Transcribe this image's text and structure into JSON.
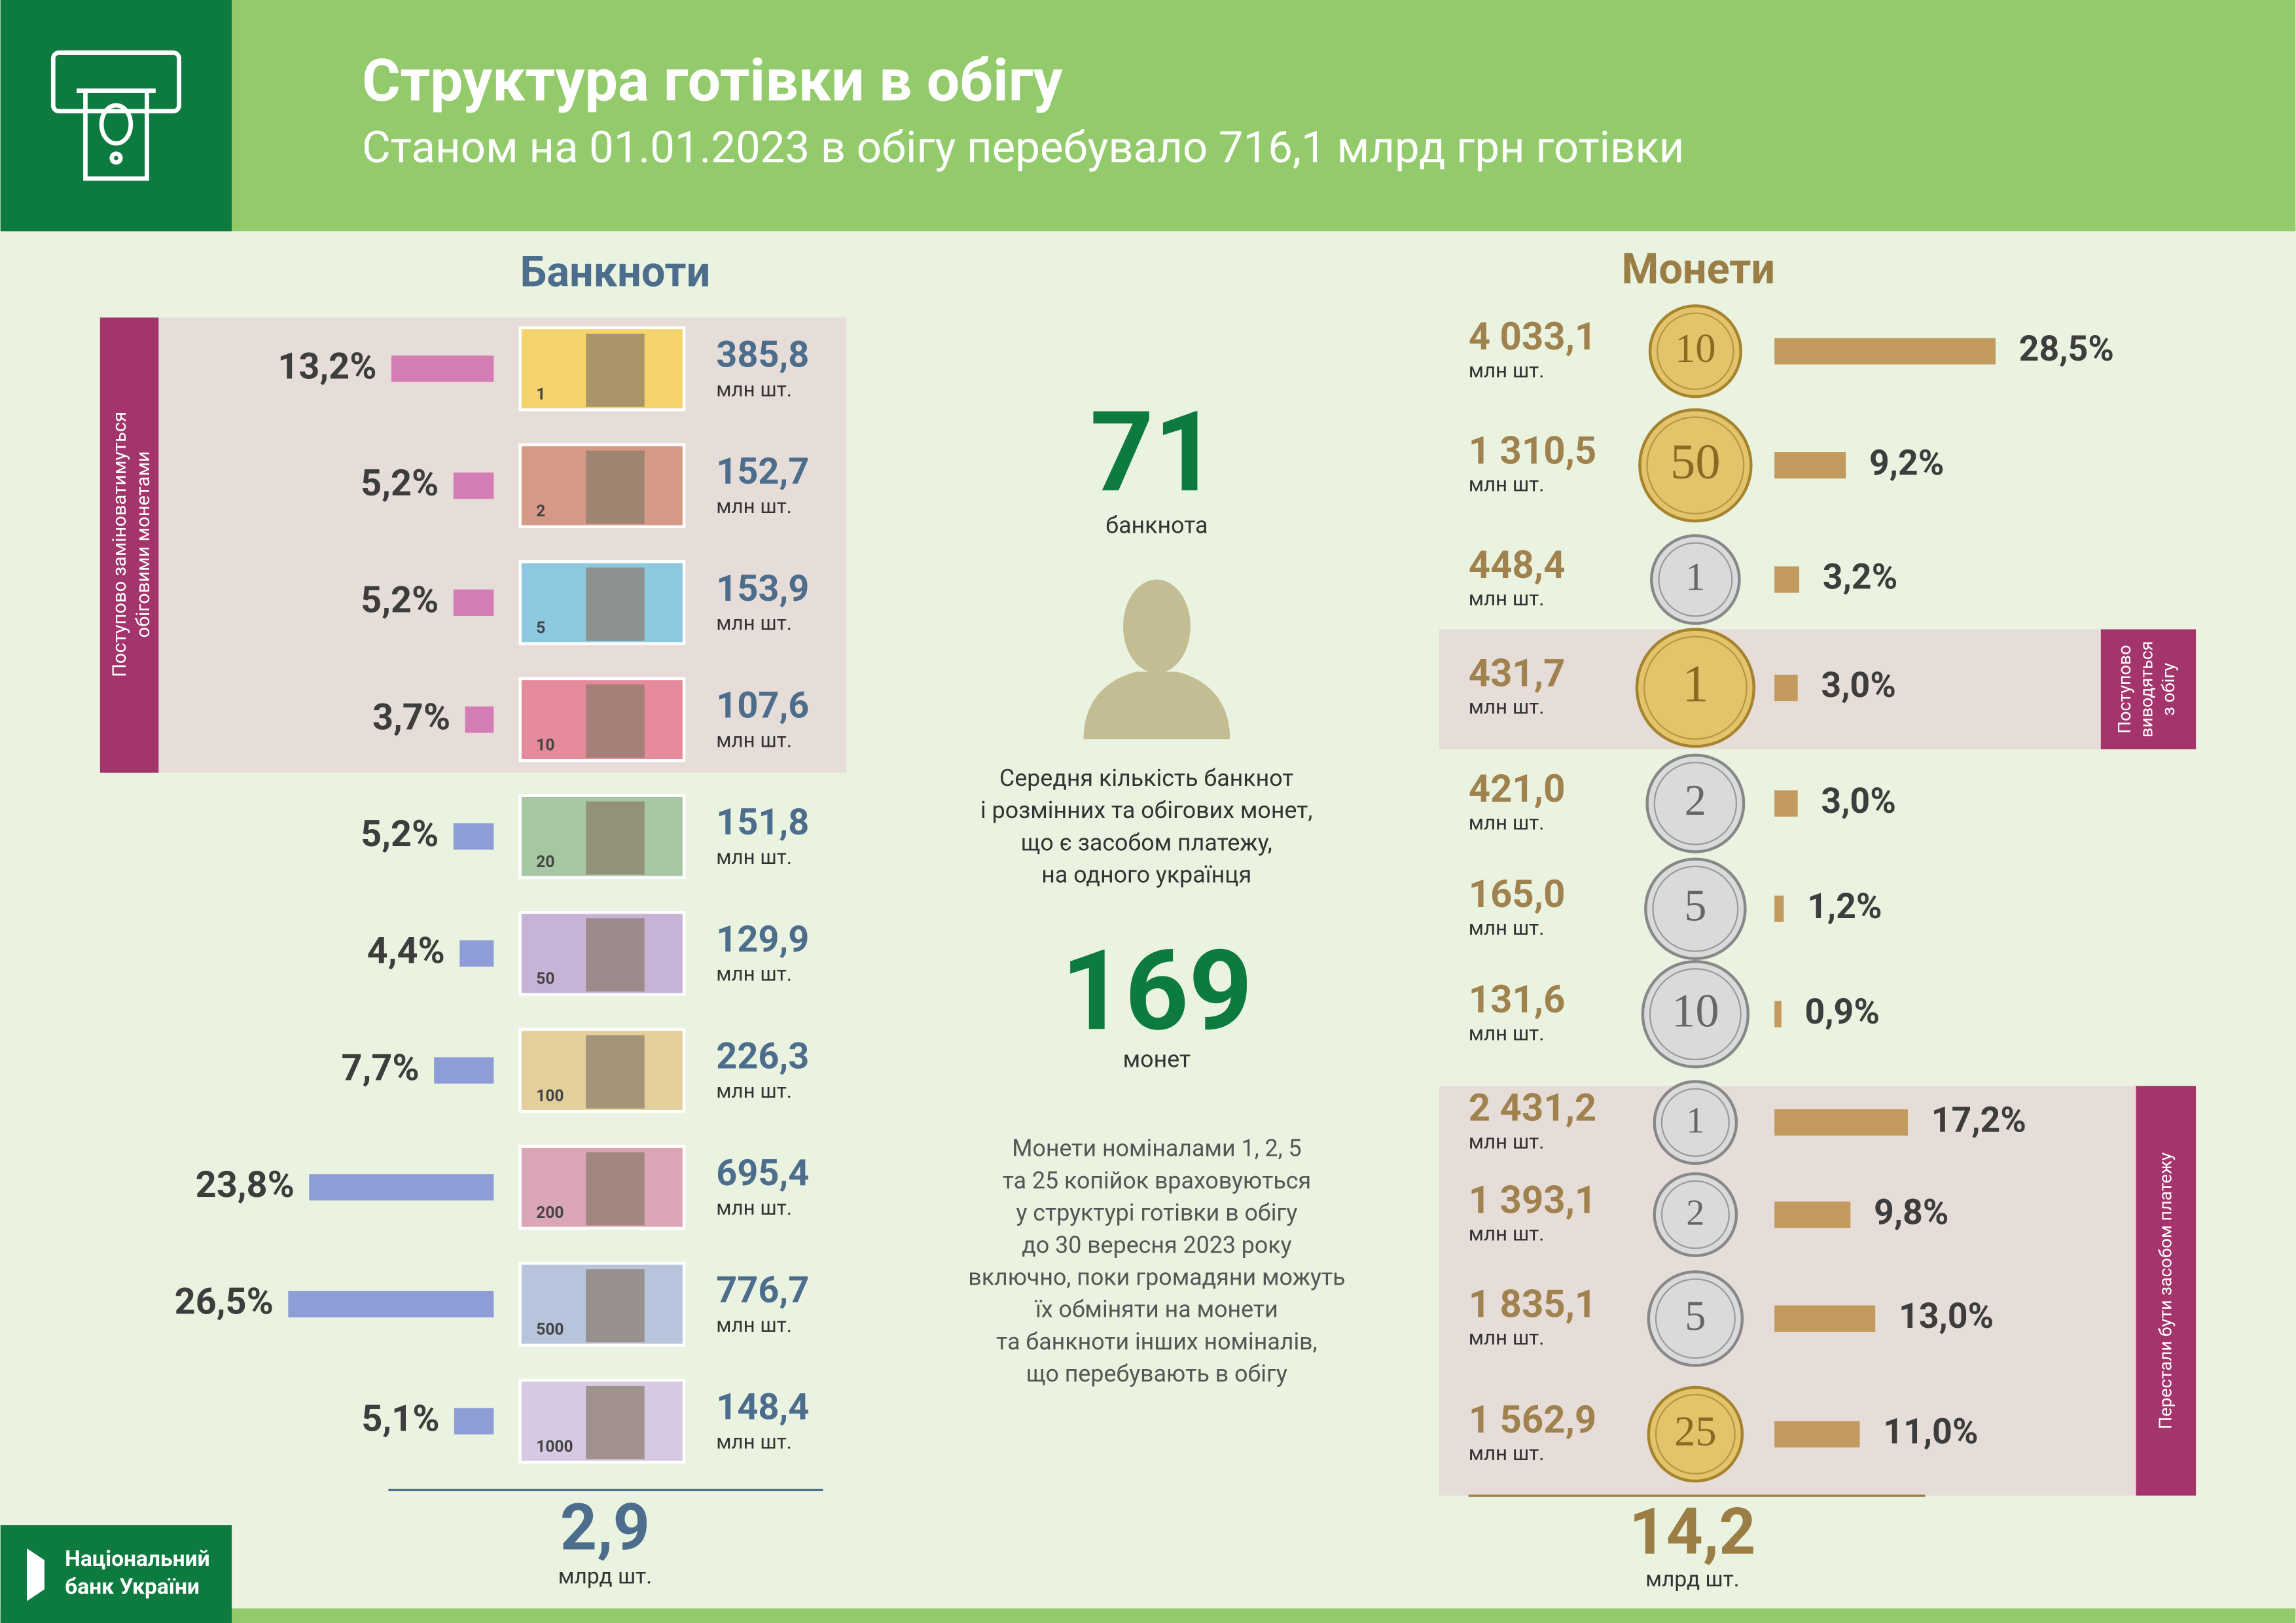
{
  "header": {
    "title": "Структура готівки в обігу",
    "subtitle": "Станом на 01.01.2023 в обігу перебувало 716,1 млрд грн готівки"
  },
  "banknotes": {
    "heading": "Банкноти",
    "bar_colors": [
      "#d47db4",
      "#8e9dd6"
    ],
    "group_note": [
      "Поступово заміноватимуться",
      "обіговими монетами"
    ],
    "items": [
      {
        "denom": "1",
        "percent": 13.2,
        "percent_label": "13,2%",
        "count": "385,8",
        "unit": "млн шт."
      },
      {
        "denom": "2",
        "percent": 5.2,
        "percent_label": "5,2%",
        "count": "152,7",
        "unit": "млн шт."
      },
      {
        "denom": "5",
        "percent": 5.2,
        "percent_label": "5,2%",
        "count": "153,9",
        "unit": "млн шт."
      },
      {
        "denom": "10",
        "percent": 3.7,
        "percent_label": "3,7%",
        "count": "107,6",
        "unit": "млн шт."
      },
      {
        "denom": "20",
        "percent": 5.2,
        "percent_label": "5,2%",
        "count": "151,8",
        "unit": "млн шт."
      },
      {
        "denom": "50",
        "percent": 4.4,
        "percent_label": "4,4%",
        "count": "129,9",
        "unit": "млн шт."
      },
      {
        "denom": "100",
        "percent": 7.7,
        "percent_label": "7,7%",
        "count": "226,3",
        "unit": "млн шт."
      },
      {
        "denom": "200",
        "percent": 23.8,
        "percent_label": "23,8%",
        "count": "695,4",
        "unit": "млн шт."
      },
      {
        "denom": "500",
        "percent": 26.5,
        "percent_label": "26,5%",
        "count": "776,7",
        "unit": "млн шт."
      },
      {
        "denom": "1000",
        "percent": 5.1,
        "percent_label": "5,1%",
        "count": "148,4",
        "unit": "млн шт."
      }
    ],
    "total": "2,9",
    "total_unit": "млрд шт."
  },
  "center": {
    "banknotes_count": "71",
    "banknotes_label": "банкнота",
    "description": [
      "Середня кількість банкнот",
      "і розмінних та обігових монет,",
      "що є засобом платежу,",
      "на одного українця"
    ],
    "coins_count": "169",
    "coins_label": "монет",
    "note": [
      "Монети  номіналами 1, 2, 5",
      "та 25 копійок враховуються",
      "у структурі готівки в обігу",
      "до 30 вересня 2023 року",
      "включно, поки громадяни можуть",
      "їх обміняти на монети",
      "та банкноти інших номіналів,",
      "що перебувають  в  обігу"
    ]
  },
  "coins": {
    "heading": "Монети",
    "bar_color": "#c39a5d",
    "group_notes": [
      [
        "Поступово",
        "виводяться",
        "з обігу"
      ],
      [
        "Перестали бути засобом  платежу"
      ]
    ],
    "items": [
      {
        "denom": "10",
        "percent": 28.5,
        "percent_label": "28,5%",
        "count": "4 033,1",
        "unit": "млн шт."
      },
      {
        "denom": "50",
        "percent": 9.2,
        "percent_label": "9,2%",
        "count": "1 310,5",
        "unit": "млн шт."
      },
      {
        "denom": "1",
        "percent": 3.2,
        "percent_label": "3,2%",
        "count": "448,4",
        "unit": "млн шт."
      },
      {
        "denom": "1",
        "percent": 3.0,
        "percent_label": "3,0%",
        "count": "431,7",
        "unit": "млн шт."
      },
      {
        "denom": "2",
        "percent": 3.0,
        "percent_label": "3,0%",
        "count": "421,0",
        "unit": "млн шт."
      },
      {
        "denom": "5",
        "percent": 1.2,
        "percent_label": "1,2%",
        "count": "165,0",
        "unit": "млн шт."
      },
      {
        "denom": "10",
        "percent": 0.9,
        "percent_label": "0,9%",
        "count": "131,6",
        "unit": "млн шт."
      },
      {
        "denom": "1",
        "percent": 17.2,
        "percent_label": "17,2%",
        "count": "2 431,2",
        "unit": "млн шт."
      },
      {
        "denom": "2",
        "percent": 9.8,
        "percent_label": "9,8%",
        "count": "1 393,1",
        "unit": "млн шт."
      },
      {
        "denom": "5",
        "percent": 13.0,
        "percent_label": "13,0%",
        "count": "1 835,1",
        "unit": "млн шт."
      },
      {
        "denom": "25",
        "percent": 11.0,
        "percent_label": "11,0%",
        "count": "1 562,9",
        "unit": "млн шт."
      }
    ],
    "total": "14,2",
    "total_unit": "млрд шт."
  },
  "footer": {
    "logo": [
      "Національний",
      "банк України"
    ]
  }
}
